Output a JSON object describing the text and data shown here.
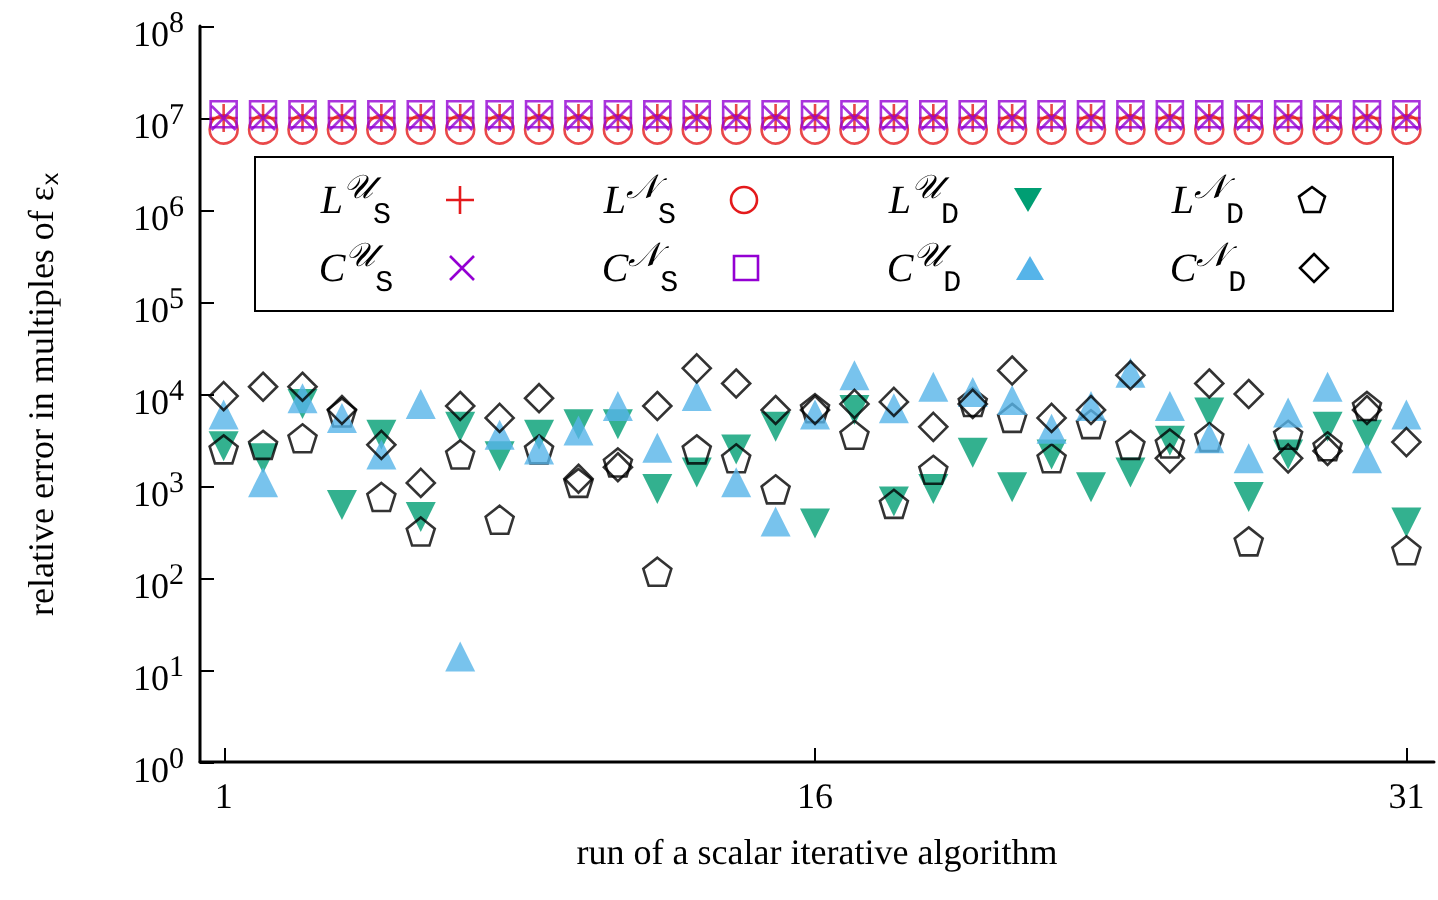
{
  "chart_data": {
    "type": "scatter",
    "xlabel": "run of a scalar iterative algorithm",
    "ylabel": "relative error in multiples of ε$_{x}$",
    "x": [
      1,
      2,
      3,
      4,
      5,
      6,
      7,
      8,
      9,
      10,
      11,
      12,
      13,
      14,
      15,
      16,
      17,
      18,
      19,
      20,
      21,
      22,
      23,
      24,
      25,
      26,
      27,
      28,
      29,
      30,
      31
    ],
    "xlim": [
      0.4,
      31.7
    ],
    "xticks": [
      1,
      16,
      31
    ],
    "ylim": [
      1,
      100000000
    ],
    "log": true,
    "yticks": [
      {
        "value": 1,
        "label": "10$^{0}$"
      },
      {
        "value": 10,
        "label": "10$^{1}$"
      },
      {
        "value": 100,
        "label": "10$^{2}$"
      },
      {
        "value": 1000,
        "label": "10$^{3}$"
      },
      {
        "value": 10000,
        "label": "10$^{4}$"
      },
      {
        "value": 100000,
        "label": "10$^{5}$"
      },
      {
        "value": 1000000,
        "label": "10$^{6}$"
      },
      {
        "value": 10000000,
        "label": "10$^{7}$"
      },
      {
        "value": 100000000,
        "label": "10$^{8}$"
      }
    ],
    "grid": false,
    "legend": "top",
    "series": [
      {
        "name": "L$^{𝒰}$$_{S}$",
        "marker": "plus",
        "color": "#e41a1c",
        "values": [
          10000000,
          10000000,
          10000000,
          10000000,
          10000000,
          10000000,
          10000000,
          10000000,
          10000000,
          10000000,
          10000000,
          10000000,
          10000000,
          10000000,
          10000000,
          10000000,
          10000000,
          10000000,
          10000000,
          10000000,
          10000000,
          10000000,
          10000000,
          10000000,
          10000000,
          10000000,
          10000000,
          10000000,
          10000000,
          10000000,
          10000000
        ]
      },
      {
        "name": "L$^{𝒩}$$_{S}$",
        "marker": "circle",
        "color": "#e41a1c",
        "values": [
          7500000,
          7500000,
          7500000,
          7500000,
          7500000,
          7500000,
          7500000,
          7500000,
          7500000,
          7500000,
          7500000,
          7500000,
          7500000,
          7500000,
          7500000,
          7500000,
          7500000,
          7500000,
          7500000,
          7500000,
          7500000,
          7500000,
          7500000,
          7500000,
          7500000,
          7500000,
          7500000,
          7500000,
          7500000,
          7500000,
          7500000
        ]
      },
      {
        "name": "L$^{𝒰}$$_{D}$",
        "marker": "triangle-down",
        "color": "#009e73",
        "values": [
          2700,
          2000,
          7800,
          620,
          3600,
          460,
          4400,
          2100,
          3600,
          4700,
          4700,
          930,
          1400,
          2500,
          4400,
          390,
          6700,
          680,
          930,
          2300,
          970,
          2200,
          970,
          1400,
          3100,
          6300,
          760,
          2200,
          4400,
          3600,
          400
        ]
      },
      {
        "name": "L$^{𝒩}$$_{D}$",
        "color": "#000000",
        "values": [
          2500,
          2800,
          3300,
          6300,
          760,
          320,
          2200,
          430,
          2500,
          1080,
          1800,
          117,
          2500,
          2000,
          920,
          7000,
          3600,
          640,
          1500,
          8200,
          5500,
          2000,
          4700,
          2800,
          2900,
          3400,
          250,
          3600,
          2700,
          7400,
          200
        ]
      },
      {
        "name": "C$^{𝒰}$$_{S}$",
        "marker": "x",
        "color": "#9400d3",
        "values": [
          10000000,
          10000000,
          10000000,
          10000000,
          10000000,
          10000000,
          10000000,
          10000000,
          10000000,
          10000000,
          10000000,
          10000000,
          10000000,
          10000000,
          10000000,
          10000000,
          10000000,
          10000000,
          10000000,
          10000000,
          10000000,
          10000000,
          10000000,
          10000000,
          10000000,
          10000000,
          10000000,
          10000000,
          10000000,
          10000000,
          10000000
        ]
      },
      {
        "name": "C$^{𝒩}$$_{S}$",
        "marker": "square",
        "color": "#9400d3",
        "values": [
          11000000,
          11000000,
          11000000,
          11000000,
          11000000,
          11000000,
          11000000,
          11000000,
          11000000,
          11000000,
          11000000,
          11000000,
          11000000,
          11000000,
          11000000,
          11000000,
          11000000,
          11000000,
          11000000,
          11000000,
          11000000,
          11000000,
          11000000,
          11000000,
          11000000,
          11000000,
          11000000,
          11000000,
          11000000,
          11000000,
          11000000
        ]
      },
      {
        "name": "C$^{𝒰}$$_{D}$",
        "marker": "triangle",
        "color": "#56b4e9",
        "values": [
          6000,
          1100,
          9000,
          5500,
          2200,
          7800,
          14,
          3600,
          2500,
          4000,
          7400,
          2600,
          9500,
          1100,
          410,
          6000,
          16000,
          7000,
          12000,
          10500,
          8600,
          4200,
          7400,
          17000,
          7400,
          3300,
          2000,
          6300,
          12000,
          2000,
          6000
        ]
      },
      {
        "name": "C$^{𝒩}$$_{D}$",
        "marker": "diamond",
        "color": "#000000",
        "values": [
          9500,
          12000,
          12000,
          6700,
          2800,
          1080,
          7400,
          5500,
          9000,
          1200,
          1600,
          7400,
          19000,
          13000,
          6700,
          6700,
          7800,
          8200,
          4400,
          7800,
          18000,
          5500,
          6700,
          16000,
          2000,
          13000,
          10000,
          2000,
          2400,
          6700,
          3000
        ]
      }
    ]
  }
}
